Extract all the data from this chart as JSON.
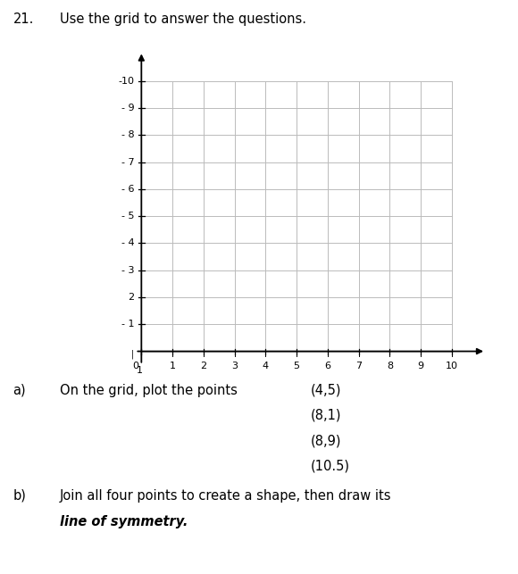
{
  "question_number": "21.",
  "question_text": "Use the grid to answer the questions.",
  "sub_a_label": "a)",
  "sub_a_text": "On the grid, plot the points",
  "points": [
    "(4,5)",
    "(8,1)",
    "(8,9)",
    "(10.5)"
  ],
  "sub_b_label": "b)",
  "sub_b_text_plain": "Join all four points to create a shape, then draw its",
  "sub_b_bold_italic": "line of symmetry",
  "sub_b_end": ".",
  "background_color": "#ffffff",
  "grid_color": "#bbbbbb",
  "axis_color": "#000000",
  "text_color": "#000000",
  "figure_width": 5.8,
  "figure_height": 6.43,
  "dpi": 100,
  "ytick_labels": [
    "-10",
    "- 9",
    "- 8",
    "- 7",
    "- 6",
    "- 5",
    "- 4",
    "- 3",
    "2",
    "- 1"
  ],
  "xtick_labels": [
    "0",
    "1",
    "2",
    "3",
    "4",
    "5",
    "6",
    "7",
    "8",
    "9",
    "10"
  ]
}
